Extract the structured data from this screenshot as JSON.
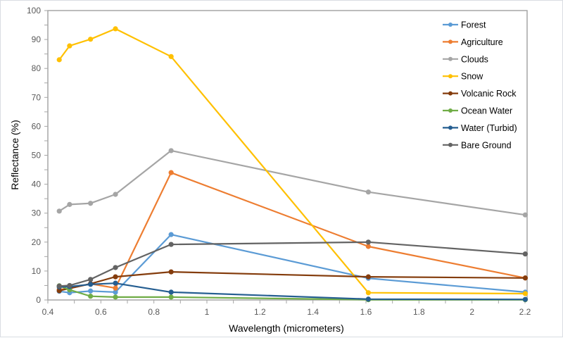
{
  "chart_data": {
    "type": "line",
    "title": "",
    "xlabel": "Wavelength (micrometers)",
    "ylabel": "Reflectance (%)",
    "xlim": [
      0.4,
      2.2
    ],
    "ylim": [
      0,
      100
    ],
    "x_ticks": [
      0.4,
      0.6,
      0.8,
      1,
      1.2,
      1.4,
      1.6,
      1.8,
      2,
      2.2
    ],
    "x_tick_labels": [
      "0.4",
      "0.6",
      "0.8",
      "1",
      "1.2",
      "1.4",
      "1.6",
      "1.8",
      "2",
      "2.2"
    ],
    "y_ticks": [
      0,
      10,
      20,
      30,
      40,
      50,
      60,
      70,
      80,
      90,
      100
    ],
    "y_tick_labels": [
      "0",
      "10",
      "20",
      "30",
      "40",
      "50",
      "60",
      "70",
      "80",
      "90",
      "100"
    ],
    "grid": false,
    "legend_position": "upper-right-inside",
    "x": [
      0.443,
      0.482,
      0.561,
      0.655,
      0.865,
      1.609,
      2.201
    ],
    "series": [
      {
        "name": "Forest",
        "color": "#5B9BD5",
        "values": [
          3.0,
          2.5,
          3.1,
          2.7,
          22.6,
          7.5,
          2.7
        ]
      },
      {
        "name": "Agriculture",
        "color": "#ED7D31",
        "values": [
          3.6,
          4.0,
          5.6,
          4.1,
          44.0,
          18.5,
          7.6
        ]
      },
      {
        "name": "Clouds",
        "color": "#A5A5A5",
        "values": [
          30.7,
          33.0,
          33.4,
          36.5,
          51.6,
          37.3,
          29.4
        ]
      },
      {
        "name": "Snow",
        "color": "#FFC000",
        "values": [
          83.0,
          87.8,
          90.1,
          93.7,
          84.1,
          2.5,
          2.2
        ]
      },
      {
        "name": "Volcanic Rock",
        "color": "#843C0C",
        "values": [
          3.2,
          4.0,
          5.6,
          8.0,
          9.7,
          8.0,
          7.6
        ]
      },
      {
        "name": "Ocean Water",
        "color": "#70AD47",
        "values": [
          4.9,
          3.5,
          1.3,
          1.0,
          1.0,
          0.1,
          0.1
        ]
      },
      {
        "name": "Water (Turbid)",
        "color": "#255E91",
        "values": [
          4.5,
          4.6,
          5.4,
          5.8,
          2.7,
          0.3,
          0.2
        ]
      },
      {
        "name": "Bare Ground",
        "color": "#636363",
        "values": [
          4.8,
          5.0,
          7.1,
          11.2,
          19.2,
          20.0,
          15.9
        ]
      }
    ]
  }
}
